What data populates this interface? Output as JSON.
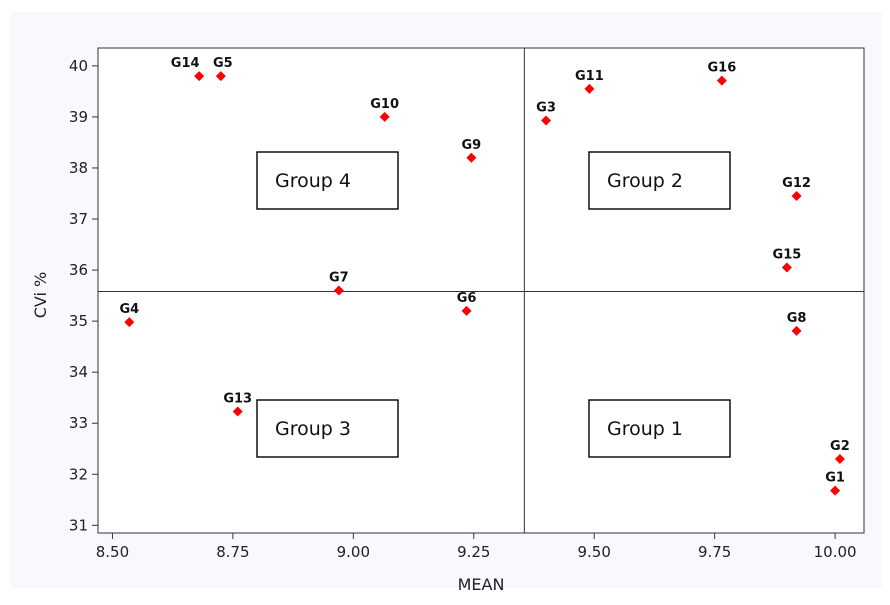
{
  "chart_data": {
    "type": "scatter",
    "title": "",
    "xlabel": "MEAN",
    "ylabel": "CVi %",
    "xlim": [
      8.47,
      10.06
    ],
    "ylim": [
      30.85,
      40.35
    ],
    "xticks": [
      8.5,
      8.75,
      9.0,
      9.25,
      9.5,
      9.75,
      10.0
    ],
    "xtick_labels": [
      "8.50",
      "8.75",
      "9.00",
      "9.25",
      "9.50",
      "9.75",
      "10.00"
    ],
    "yticks": [
      31,
      32,
      33,
      34,
      35,
      36,
      37,
      38,
      39,
      40
    ],
    "ytick_labels": [
      "31",
      "32",
      "33",
      "34",
      "35",
      "36",
      "37",
      "38",
      "39",
      "40"
    ],
    "grid": false,
    "reference_lines": {
      "x": 9.355,
      "y": 35.58
    },
    "marker_color": "#ff0000",
    "points": [
      {
        "label": "G1",
        "x": 10.0,
        "y": 31.68
      },
      {
        "label": "G2",
        "x": 10.01,
        "y": 32.3
      },
      {
        "label": "G3",
        "x": 9.4,
        "y": 38.93
      },
      {
        "label": "G4",
        "x": 8.535,
        "y": 34.98
      },
      {
        "label": "G5",
        "x": 8.725,
        "y": 39.8
      },
      {
        "label": "G6",
        "x": 9.235,
        "y": 35.2
      },
      {
        "label": "G7",
        "x": 8.97,
        "y": 35.6
      },
      {
        "label": "G8",
        "x": 9.92,
        "y": 34.81
      },
      {
        "label": "G9",
        "x": 9.245,
        "y": 38.2
      },
      {
        "label": "G10",
        "x": 9.065,
        "y": 39.0
      },
      {
        "label": "G11",
        "x": 9.49,
        "y": 39.55
      },
      {
        "label": "G12",
        "x": 9.92,
        "y": 37.45
      },
      {
        "label": "G13",
        "x": 8.76,
        "y": 33.23
      },
      {
        "label": "G14",
        "x": 8.68,
        "y": 39.8
      },
      {
        "label": "G15",
        "x": 9.9,
        "y": 36.05
      },
      {
        "label": "G16",
        "x": 9.765,
        "y": 39.71
      }
    ],
    "group_boxes": [
      {
        "label": "Group 4",
        "quadrant": "top-left"
      },
      {
        "label": "Group 2",
        "quadrant": "top-right"
      },
      {
        "label": "Group 3",
        "quadrant": "bottom-left"
      },
      {
        "label": "Group 1",
        "quadrant": "bottom-right"
      }
    ]
  }
}
